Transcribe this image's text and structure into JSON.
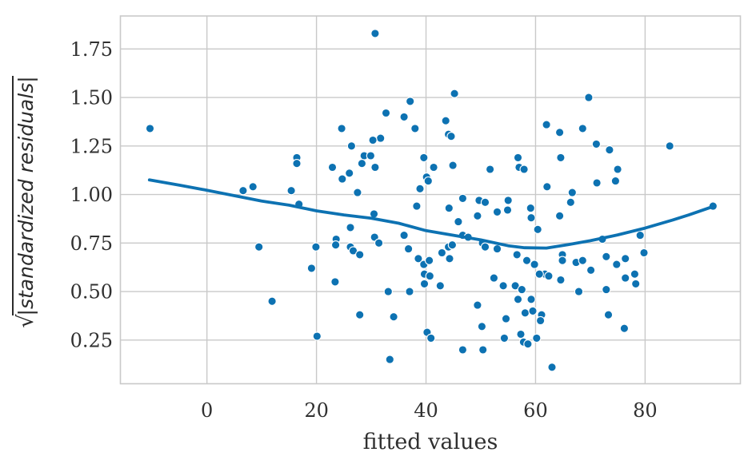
{
  "chart_data": {
    "type": "scatter",
    "xlabel": "fitted values",
    "ylabel": "sqrt(|standardized residuals|)",
    "ylabel_sqrt": "√",
    "ylabel_inner": "|standardized residuals|",
    "xlim": [
      -15.8,
      97.4
    ],
    "ylim": [
      0.025,
      1.92
    ],
    "grid": true,
    "legend": "none",
    "point_color": "#0d72b2",
    "point_edge_color": "#ffffff",
    "line_color": "#0d72b2",
    "grid_color": "#c9c9c9",
    "text_color": "#303030",
    "xticks": [
      0,
      20,
      40,
      60,
      80
    ],
    "xtick_labels": [
      "0",
      "20",
      "40",
      "60",
      "80"
    ],
    "yticks": [
      0.25,
      0.5,
      0.75,
      1.0,
      1.25,
      1.5,
      1.75
    ],
    "ytick_labels": [
      "0.25",
      "0.50",
      "0.75",
      "1.00",
      "1.25",
      "1.50",
      "1.75"
    ],
    "points": [
      [
        -10.4,
        1.34
      ],
      [
        6.6,
        1.02
      ],
      [
        8.4,
        1.04
      ],
      [
        9.5,
        0.73
      ],
      [
        11.9,
        0.45
      ],
      [
        15.4,
        1.02
      ],
      [
        16.4,
        1.19
      ],
      [
        16.4,
        1.16
      ],
      [
        16.8,
        0.95
      ],
      [
        19.1,
        0.62
      ],
      [
        19.9,
        0.73
      ],
      [
        20.1,
        0.27
      ],
      [
        30.7,
        1.83
      ],
      [
        45.2,
        1.52
      ],
      [
        37.1,
        1.48
      ],
      [
        32.7,
        1.42
      ],
      [
        36.0,
        1.4
      ],
      [
        43.6,
        1.38
      ],
      [
        38.0,
        1.34
      ],
      [
        24.6,
        1.34
      ],
      [
        44.1,
        1.31
      ],
      [
        44.6,
        1.3
      ],
      [
        31.7,
        1.29
      ],
      [
        30.3,
        1.28
      ],
      [
        26.4,
        1.25
      ],
      [
        28.7,
        1.2
      ],
      [
        29.9,
        1.2
      ],
      [
        28.3,
        1.16
      ],
      [
        30.7,
        1.14
      ],
      [
        22.9,
        1.14
      ],
      [
        26.0,
        1.11
      ],
      [
        24.7,
        1.08
      ],
      [
        39.6,
        1.19
      ],
      [
        41.4,
        1.14
      ],
      [
        44.9,
        1.15
      ],
      [
        51.7,
        1.13
      ],
      [
        56.8,
        1.19
      ],
      [
        57.0,
        1.14
      ],
      [
        57.9,
        1.13
      ],
      [
        40.1,
        1.09
      ],
      [
        40.4,
        1.07
      ],
      [
        38.9,
        1.03
      ],
      [
        27.5,
        1.01
      ],
      [
        69.7,
        1.5
      ],
      [
        62.0,
        1.36
      ],
      [
        64.4,
        1.32
      ],
      [
        68.6,
        1.34
      ],
      [
        71.1,
        1.26
      ],
      [
        73.5,
        1.23
      ],
      [
        64.6,
        1.19
      ],
      [
        75.0,
        1.13
      ],
      [
        74.6,
        1.07
      ],
      [
        71.2,
        1.06
      ],
      [
        62.1,
        1.04
      ],
      [
        66.7,
        1.01
      ],
      [
        84.5,
        1.25
      ],
      [
        92.4,
        0.94
      ],
      [
        38.3,
        0.94
      ],
      [
        44.2,
        0.93
      ],
      [
        45.9,
        0.86
      ],
      [
        46.7,
        0.98
      ],
      [
        49.4,
        0.89
      ],
      [
        49.7,
        0.97
      ],
      [
        50.8,
        0.96
      ],
      [
        53.0,
        0.91
      ],
      [
        54.9,
        0.92
      ],
      [
        55.0,
        0.97
      ],
      [
        59.1,
        0.93
      ],
      [
        59.2,
        0.88
      ],
      [
        30.5,
        0.9
      ],
      [
        26.2,
        0.83
      ],
      [
        66.4,
        0.96
      ],
      [
        64.4,
        0.89
      ],
      [
        60.4,
        0.82
      ],
      [
        23.6,
        0.77
      ],
      [
        23.5,
        0.74
      ],
      [
        26.2,
        0.73
      ],
      [
        26.7,
        0.71
      ],
      [
        27.9,
        0.69
      ],
      [
        30.6,
        0.78
      ],
      [
        31.4,
        0.75
      ],
      [
        36.0,
        0.79
      ],
      [
        36.8,
        0.72
      ],
      [
        38.6,
        0.67
      ],
      [
        39.6,
        0.64
      ],
      [
        40.6,
        0.66
      ],
      [
        42.9,
        0.7
      ],
      [
        44.1,
        0.73
      ],
      [
        44.3,
        0.67
      ],
      [
        44.8,
        0.74
      ],
      [
        46.7,
        0.79
      ],
      [
        47.7,
        0.78
      ],
      [
        50.3,
        0.75
      ],
      [
        50.8,
        0.73
      ],
      [
        53.0,
        0.72
      ],
      [
        56.6,
        0.69
      ],
      [
        58.4,
        0.66
      ],
      [
        59.8,
        0.64
      ],
      [
        64.9,
        0.69
      ],
      [
        64.9,
        0.66
      ],
      [
        67.4,
        0.65
      ],
      [
        68.6,
        0.66
      ],
      [
        70.1,
        0.61
      ],
      [
        72.9,
        0.68
      ],
      [
        74.8,
        0.64
      ],
      [
        76.4,
        0.67
      ],
      [
        72.2,
        0.77
      ],
      [
        79.1,
        0.79
      ],
      [
        79.8,
        0.7
      ],
      [
        61.7,
        0.59
      ],
      [
        60.7,
        0.59
      ],
      [
        62.4,
        0.58
      ],
      [
        64.6,
        0.56
      ],
      [
        76.4,
        0.57
      ],
      [
        78.1,
        0.59
      ],
      [
        78.3,
        0.54
      ],
      [
        67.9,
        0.5
      ],
      [
        72.9,
        0.51
      ],
      [
        23.4,
        0.55
      ],
      [
        33.1,
        0.5
      ],
      [
        37.0,
        0.5
      ],
      [
        39.7,
        0.59
      ],
      [
        40.7,
        0.58
      ],
      [
        39.7,
        0.54
      ],
      [
        42.6,
        0.53
      ],
      [
        49.4,
        0.43
      ],
      [
        52.4,
        0.57
      ],
      [
        54.1,
        0.53
      ],
      [
        56.3,
        0.53
      ],
      [
        57.5,
        0.51
      ],
      [
        56.8,
        0.46
      ],
      [
        59.2,
        0.46
      ],
      [
        58.1,
        0.39
      ],
      [
        59.5,
        0.4
      ],
      [
        61.1,
        0.38
      ],
      [
        60.9,
        0.35
      ],
      [
        54.6,
        0.36
      ],
      [
        27.9,
        0.38
      ],
      [
        34.1,
        0.37
      ],
      [
        50.2,
        0.32
      ],
      [
        40.2,
        0.29
      ],
      [
        40.9,
        0.26
      ],
      [
        46.7,
        0.2
      ],
      [
        50.4,
        0.2
      ],
      [
        33.4,
        0.15
      ],
      [
        54.3,
        0.26
      ],
      [
        57.3,
        0.28
      ],
      [
        57.8,
        0.24
      ],
      [
        58.6,
        0.23
      ],
      [
        60.2,
        0.26
      ],
      [
        63.0,
        0.11
      ],
      [
        73.3,
        0.38
      ],
      [
        76.2,
        0.31
      ]
    ],
    "lowess_line": [
      [
        -10.5,
        1.075
      ],
      [
        -5,
        1.048
      ],
      [
        0,
        1.022
      ],
      [
        5,
        0.994
      ],
      [
        10,
        0.966
      ],
      [
        15,
        0.945
      ],
      [
        20,
        0.916
      ],
      [
        25,
        0.895
      ],
      [
        30,
        0.878
      ],
      [
        35,
        0.852
      ],
      [
        40,
        0.814
      ],
      [
        45,
        0.79
      ],
      [
        50,
        0.766
      ],
      [
        55,
        0.736
      ],
      [
        58,
        0.726
      ],
      [
        62,
        0.724
      ],
      [
        66,
        0.742
      ],
      [
        70,
        0.762
      ],
      [
        75,
        0.792
      ],
      [
        80,
        0.827
      ],
      [
        85,
        0.868
      ],
      [
        88,
        0.895
      ],
      [
        92.4,
        0.938
      ]
    ]
  }
}
